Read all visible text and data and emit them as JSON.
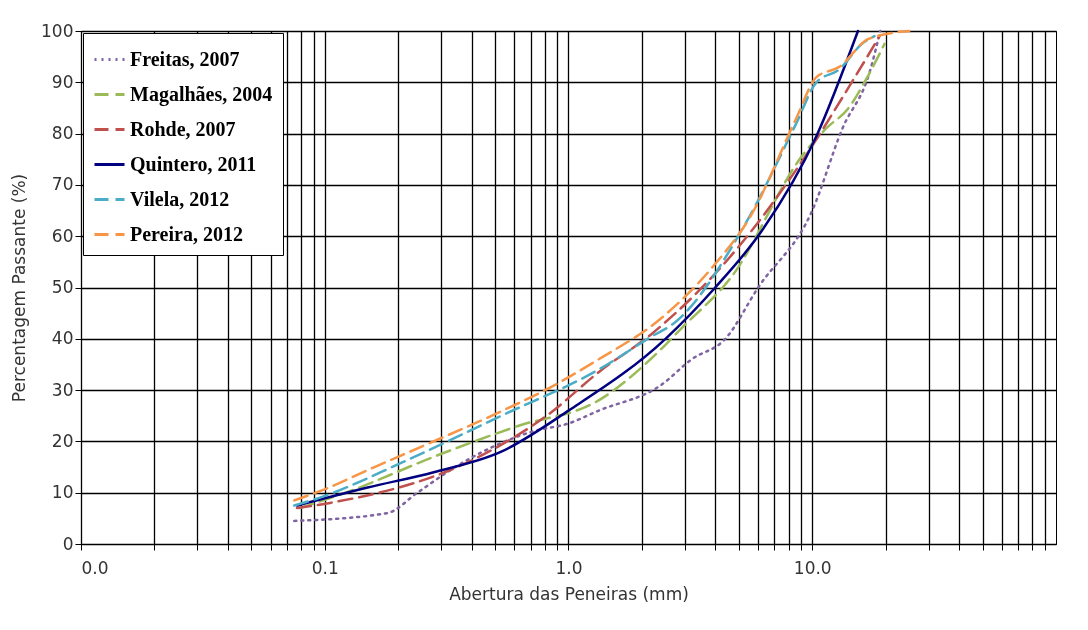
{
  "chart_data": {
    "type": "line",
    "xlabel": "Abertura das Peneiras (mm)",
    "ylabel": "Percentagem Passante (%)",
    "log": "x",
    "grid": true,
    "legend": "top left",
    "marker": "none",
    "xlim": [
      0.01,
      100
    ],
    "ylim": [
      0,
      100
    ],
    "xticks": [
      {
        "value": 0.01,
        "label": "0.0"
      },
      {
        "value": 0.02,
        "label": null
      },
      {
        "value": 0.03,
        "label": null
      },
      {
        "value": 0.04,
        "label": null
      },
      {
        "value": 0.05,
        "label": null
      },
      {
        "value": 0.06,
        "label": null
      },
      {
        "value": 0.07,
        "label": null
      },
      {
        "value": 0.08,
        "label": null
      },
      {
        "value": 0.09,
        "label": null
      },
      {
        "value": 0.1,
        "label": "0.1"
      },
      {
        "value": 0.2,
        "label": null
      },
      {
        "value": 0.3,
        "label": null
      },
      {
        "value": 0.4,
        "label": null
      },
      {
        "value": 0.5,
        "label": null
      },
      {
        "value": 0.6,
        "label": null
      },
      {
        "value": 0.7,
        "label": null
      },
      {
        "value": 0.8,
        "label": null
      },
      {
        "value": 0.9,
        "label": null
      },
      {
        "value": 1,
        "label": "1.0"
      },
      {
        "value": 2,
        "label": null
      },
      {
        "value": 3,
        "label": null
      },
      {
        "value": 4,
        "label": null
      },
      {
        "value": 5,
        "label": null
      },
      {
        "value": 6,
        "label": null
      },
      {
        "value": 7,
        "label": null
      },
      {
        "value": 8,
        "label": null
      },
      {
        "value": 9,
        "label": null
      },
      {
        "value": 10,
        "label": "10.0"
      },
      {
        "value": 20,
        "label": null
      },
      {
        "value": 30,
        "label": null
      },
      {
        "value": 40,
        "label": null
      },
      {
        "value": 50,
        "label": null
      },
      {
        "value": 60,
        "label": null
      },
      {
        "value": 70,
        "label": null
      },
      {
        "value": 80,
        "label": null
      },
      {
        "value": 90,
        "label": null
      }
    ],
    "yticks": [
      0,
      10,
      20,
      30,
      40,
      50,
      60,
      70,
      80,
      90,
      100
    ],
    "series": [
      {
        "name": "Freitas, 2007",
        "color": "#8064a2",
        "line_style": "dotted",
        "x": [
          0.075,
          0.18,
          0.24,
          0.33,
          0.72,
          1.0,
          1.33,
          2.4,
          3.2,
          4.4,
          6.0,
          10,
          13.3,
          17.2,
          19
        ],
        "values": [
          4.5,
          6,
          10,
          14.5,
          22,
          23.5,
          26,
          31,
          36,
          40,
          50,
          65,
          81,
          92,
          100
        ]
      },
      {
        "name": "Magalhães, 2004",
        "color": "#9bbb59",
        "line_style": "dashed",
        "x": [
          0.079,
          0.13,
          0.28,
          0.62,
          1.33,
          2.4,
          2.9,
          4.65,
          9.2,
          11.4,
          14.1,
          16.6,
          19.8
        ],
        "values": [
          7,
          10.5,
          17,
          23,
          28,
          38,
          42,
          52,
          76,
          81,
          85,
          90.5,
          97.5
        ]
      },
      {
        "name": "Rohde, 2007",
        "color": "#c0504d",
        "line_style": "dashed",
        "x": [
          0.077,
          0.105,
          0.45,
          0.84,
          1.33,
          2.2,
          4.9,
          9.8,
          14.1,
          18.9
        ],
        "values": [
          7,
          8,
          17.5,
          25.5,
          33.5,
          41,
          57.5,
          77,
          89,
          99
        ]
      },
      {
        "name": "Quintero, 2011",
        "color": "#000080",
        "line_style": "solid",
        "x": [
          0.077,
          0.15,
          0.28,
          0.53,
          1.0,
          2.5,
          4.0,
          6.2,
          10.4,
          15.4
        ],
        "values": [
          7.5,
          11,
          14,
          18,
          26,
          40,
          50,
          61,
          79.5,
          100
        ]
      },
      {
        "name": "Vilela, 2012",
        "color": "#4bacc6",
        "line_style": "dashed",
        "x": [
          0.075,
          0.095,
          0.21,
          0.53,
          1.33,
          2.2,
          2.7,
          5.4,
          8.6,
          10.4,
          12.9,
          16,
          18
        ],
        "values": [
          7.5,
          9,
          16,
          25,
          34,
          40.5,
          43,
          63,
          82,
          90,
          92.5,
          97.5,
          99
        ]
      },
      {
        "name": "Pereira, 2012",
        "color": "#f79646",
        "line_style": "dashed",
        "x": [
          0.075,
          0.098,
          0.16,
          0.25,
          0.51,
          0.84,
          1.33,
          2.4,
          3.9,
          5.6,
          8.6,
          10.4,
          12.9,
          17.1,
          25
        ],
        "values": [
          8.5,
          10.5,
          15,
          19,
          25.5,
          30.5,
          36,
          44,
          54,
          64,
          83,
          91,
          93,
          98.5,
          100
        ]
      }
    ]
  }
}
